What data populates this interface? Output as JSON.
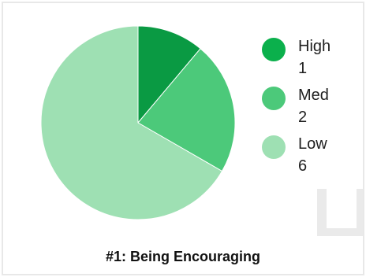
{
  "chart_data": {
    "type": "pie",
    "title": "#1: Being Encouraging",
    "categories": [
      "High",
      "Med",
      "Low"
    ],
    "values": [
      1,
      2,
      6
    ],
    "colors": [
      "#0a9a43",
      "#4cc97a",
      "#9ee0b3"
    ],
    "legend_swatch_colors": [
      "#0bb04c",
      "#4cc97a",
      "#9ee0b3"
    ],
    "legend_placement": "right"
  }
}
